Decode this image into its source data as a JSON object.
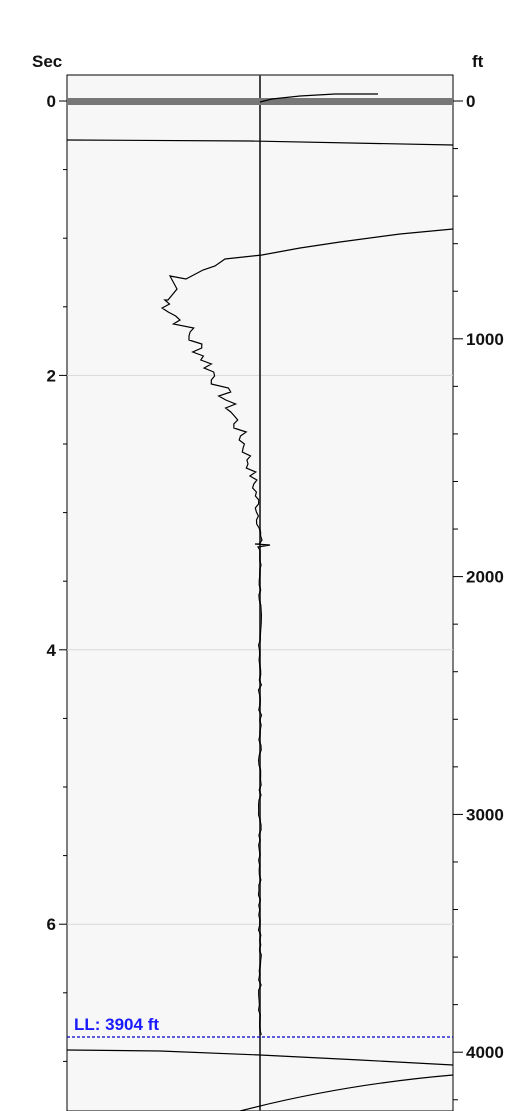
{
  "chart_data": {
    "type": "line",
    "left_axis": {
      "unit": "Sec",
      "ticks": [
        "0",
        "2",
        "4",
        "6"
      ],
      "range": [
        0,
        7.5
      ]
    },
    "right_axis": {
      "unit": "ft",
      "ticks": [
        "0",
        "1000",
        "2000",
        "3000",
        "4000"
      ]
    },
    "grid": true,
    "annotations": [
      {
        "text": "LL: 3904 ft",
        "depth_ft": 3904
      }
    ],
    "colors": {
      "plot_bg": "#f7f7f7",
      "trace": "#000000",
      "ll_line": "#0000cc",
      "ll_text": "#1a1aff",
      "grid": "#d9d9d9"
    }
  }
}
